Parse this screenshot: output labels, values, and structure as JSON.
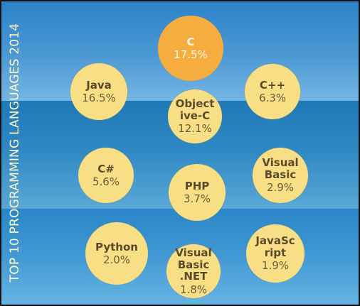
{
  "chart_data": {
    "type": "bubble",
    "title": "TOP 10 PROGRAMMING LANGUAGES 2014",
    "accent_color": "#f6ad3f",
    "bubble_color": "#f8df85",
    "background_color": "#2b82c8",
    "items": [
      {
        "id": "c",
        "label": "C",
        "value": 17.5,
        "value_label": "17.5%",
        "highlight": true
      },
      {
        "id": "java",
        "label": "Java",
        "value": 16.5,
        "value_label": "16.5%",
        "highlight": false
      },
      {
        "id": "cpp",
        "label": "C++",
        "value": 6.3,
        "value_label": "6.3%",
        "highlight": false
      },
      {
        "id": "objective-c",
        "label": "Object\nive-C",
        "value": 12.1,
        "value_label": "12.1%",
        "highlight": false
      },
      {
        "id": "csharp",
        "label": "C#",
        "value": 5.6,
        "value_label": "5.6%",
        "highlight": false
      },
      {
        "id": "php",
        "label": "PHP",
        "value": 3.7,
        "value_label": "3.7%",
        "highlight": false
      },
      {
        "id": "visual-basic",
        "label": "Visual\nBasic",
        "value": 2.9,
        "value_label": "2.9%",
        "highlight": false
      },
      {
        "id": "python",
        "label": "Python",
        "value": 2.0,
        "value_label": "2.0%",
        "highlight": false
      },
      {
        "id": "visual-basic-net",
        "label": "Visual\nBasic\n.NET",
        "value": 1.8,
        "value_label": "1.8%",
        "highlight": false
      },
      {
        "id": "javascript",
        "label": "JavaSc\nript",
        "value": 1.9,
        "value_label": "1.9%",
        "highlight": false
      }
    ]
  }
}
